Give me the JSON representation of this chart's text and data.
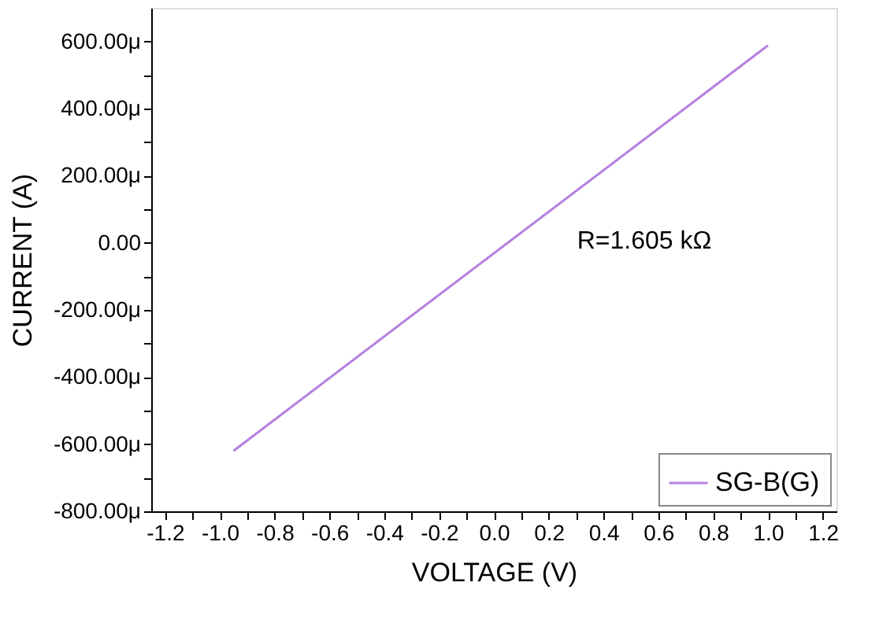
{
  "chart_data": {
    "type": "line",
    "xlabel": "VOLTAGE (V)",
    "ylabel": "CURRENT (A)",
    "x": [
      -0.95,
      1.0
    ],
    "series": [
      {
        "name": "SG-B(G)",
        "color": "#b57fe0",
        "values": [
          -620,
          588
        ]
      }
    ],
    "xlim": [
      -1.25,
      1.25
    ],
    "xticks": [
      -1.2,
      {
        "value": -1.1,
        "label": null
      },
      {
        "value": -1,
        "label": "-1.0"
      },
      {
        "value": -0.9,
        "label": null
      },
      -0.8,
      {
        "value": -0.7,
        "label": null
      },
      -0.6,
      {
        "value": -0.5,
        "label": null
      },
      -0.4,
      {
        "value": -0.3,
        "label": null
      },
      -0.2,
      {
        "value": -0.1,
        "label": null
      },
      {
        "value": 0,
        "label": "0.0"
      },
      {
        "value": 0.1,
        "label": null
      },
      0.2,
      {
        "value": 0.3,
        "label": null
      },
      0.4,
      {
        "value": 0.5,
        "label": null
      },
      0.6,
      {
        "value": 0.7,
        "label": null
      },
      0.8,
      {
        "value": 0.9,
        "label": null
      },
      {
        "value": 1,
        "label": "1.0"
      },
      {
        "value": 1.1,
        "label": null
      },
      1.2
    ],
    "ylim": [
      -800,
      700
    ],
    "yticks": [
      {
        "value": -800,
        "label": "-800.00μ"
      },
      {
        "value": -700,
        "label": null
      },
      {
        "value": -600,
        "label": "-600.00μ"
      },
      {
        "value": -500,
        "label": null
      },
      {
        "value": -400,
        "label": "-400.00μ"
      },
      {
        "value": -300,
        "label": null
      },
      {
        "value": -200,
        "label": "-200.00μ"
      },
      {
        "value": -100,
        "label": null
      },
      {
        "value": 0,
        "label": "0.00"
      },
      {
        "value": 100,
        "label": null
      },
      {
        "value": 200,
        "label": "200.00μ"
      },
      {
        "value": 300,
        "label": null
      },
      {
        "value": 400,
        "label": "400.00μ"
      },
      {
        "value": 500,
        "label": null
      },
      {
        "value": 600,
        "label": "600.00μ"
      }
    ],
    "annotations": [
      "R=1.605 kΩ"
    ],
    "grid": false,
    "legend": "bottom right",
    "marker": "none",
    "line_style": "solid"
  }
}
